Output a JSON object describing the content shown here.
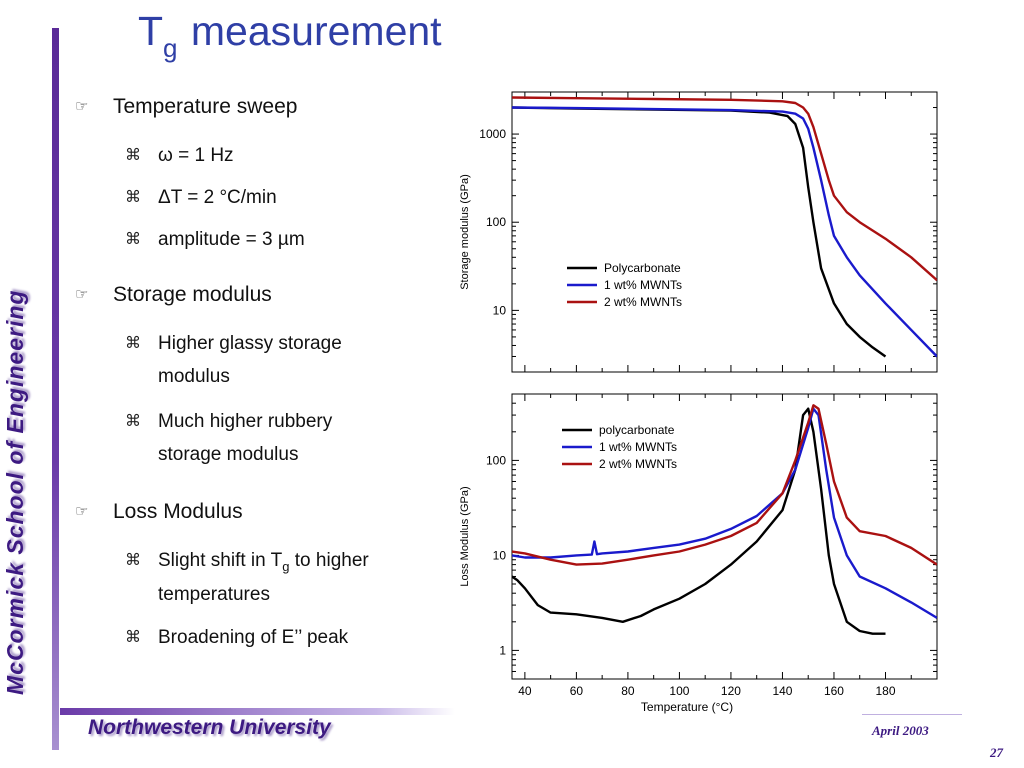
{
  "slide": {
    "title_main": "T",
    "title_sub": "g",
    "title_rest": " measurement",
    "side_text": "McCormick School of Engineering",
    "footer_text": "Northwestern University",
    "date": "April 2003",
    "page_number": "27",
    "bullet_marker": "☞",
    "sub_marker": "⌘"
  },
  "bullets": [
    {
      "text": "Temperature sweep",
      "subs": [
        "ω = 1 Hz",
        "ΔT = 2 °C/min",
        "amplitude = 3 µm"
      ]
    },
    {
      "text": "Storage modulus",
      "subs": [
        "Higher glassy storage modulus",
        "Much higher rubbery storage modulus"
      ]
    },
    {
      "text": "Loss Modulus",
      "subs": [
        "Slight shift in T",
        "Broadening of  E’’ peak"
      ]
    }
  ],
  "shift_tail": {
    "sub": "g",
    "rest": " to higher temperatures"
  },
  "chart_data": [
    {
      "type": "line",
      "ylabel": "Storage modulus (GPa)",
      "xlim": [
        35,
        200
      ],
      "ylim": [
        2,
        3000
      ],
      "yscale": "log",
      "yticks": [
        "10",
        "100",
        "1000"
      ],
      "legend_position": "center",
      "series": [
        {
          "name": "Polycarbonate",
          "color": "#000000",
          "x": [
            35,
            60,
            90,
            120,
            135,
            142,
            145,
            148,
            150,
            152,
            155,
            160,
            165,
            170,
            175,
            180
          ],
          "y": [
            2000,
            1950,
            1900,
            1850,
            1750,
            1600,
            1300,
            700,
            250,
            100,
            30,
            12,
            7,
            5,
            3.8,
            3
          ]
        },
        {
          "name": "1 wt% MWNTs",
          "color": "#1a1acc",
          "x": [
            35,
            60,
            90,
            120,
            140,
            145,
            148,
            150,
            152,
            155,
            158,
            160,
            165,
            170,
            180,
            190,
            200
          ],
          "y": [
            2000,
            1970,
            1920,
            1870,
            1800,
            1700,
            1500,
            1150,
            700,
            300,
            120,
            70,
            40,
            25,
            12,
            6,
            3
          ]
        },
        {
          "name": "2 wt% MWNTs",
          "color": "#aa1111",
          "x": [
            35,
            60,
            90,
            120,
            140,
            145,
            148,
            150,
            152,
            155,
            158,
            160,
            165,
            170,
            180,
            190,
            200
          ],
          "y": [
            2600,
            2550,
            2500,
            2450,
            2350,
            2250,
            2000,
            1700,
            1200,
            600,
            300,
            200,
            130,
            100,
            65,
            40,
            22
          ]
        }
      ]
    },
    {
      "type": "line",
      "ylabel": "Loss Modulus (GPa)",
      "xlabel": "Temperature (°C)",
      "xlim": [
        35,
        200
      ],
      "ylim": [
        0.5,
        500
      ],
      "yscale": "log",
      "xticks": [
        "40",
        "60",
        "80",
        "100",
        "120",
        "140",
        "160",
        "180"
      ],
      "yticks": [
        "1",
        "10",
        "100"
      ],
      "legend_position": "top-left",
      "series": [
        {
          "name": "polycarbonate",
          "color": "#000000",
          "x": [
            35,
            37,
            40,
            45,
            50,
            60,
            70,
            78,
            85,
            90,
            100,
            110,
            120,
            130,
            140,
            145,
            148,
            150,
            152,
            155,
            158,
            160,
            165,
            170,
            175,
            180
          ],
          "y": [
            6,
            5.5,
            4.5,
            3,
            2.5,
            2.4,
            2.2,
            2,
            2.3,
            2.7,
            3.5,
            5,
            8,
            14,
            30,
            80,
            300,
            350,
            200,
            50,
            10,
            5,
            2,
            1.6,
            1.5,
            1.5
          ]
        },
        {
          "name": "1 wt% MWNTs",
          "color": "#1a1acc",
          "x": [
            35,
            40,
            50,
            60,
            66,
            67,
            68,
            70,
            80,
            90,
            100,
            110,
            120,
            130,
            140,
            145,
            150,
            152,
            154,
            157,
            160,
            165,
            170,
            180,
            190,
            200
          ],
          "y": [
            10,
            9.5,
            9.5,
            10,
            10.2,
            14,
            10.3,
            10.5,
            11,
            12,
            13,
            15,
            19,
            26,
            45,
            80,
            220,
            350,
            300,
            80,
            25,
            10,
            6,
            4.5,
            3.2,
            2.2
          ]
        },
        {
          "name": "2 wt% MWNTs",
          "color": "#aa1111",
          "x": [
            35,
            40,
            50,
            60,
            70,
            80,
            90,
            100,
            110,
            120,
            130,
            140,
            145,
            150,
            152,
            154,
            157,
            160,
            165,
            170,
            180,
            190,
            200
          ],
          "y": [
            11,
            10.5,
            9,
            8,
            8.2,
            9,
            10,
            11,
            13,
            16,
            22,
            45,
            100,
            250,
            380,
            350,
            150,
            60,
            25,
            18,
            16,
            12,
            8
          ]
        }
      ]
    }
  ]
}
